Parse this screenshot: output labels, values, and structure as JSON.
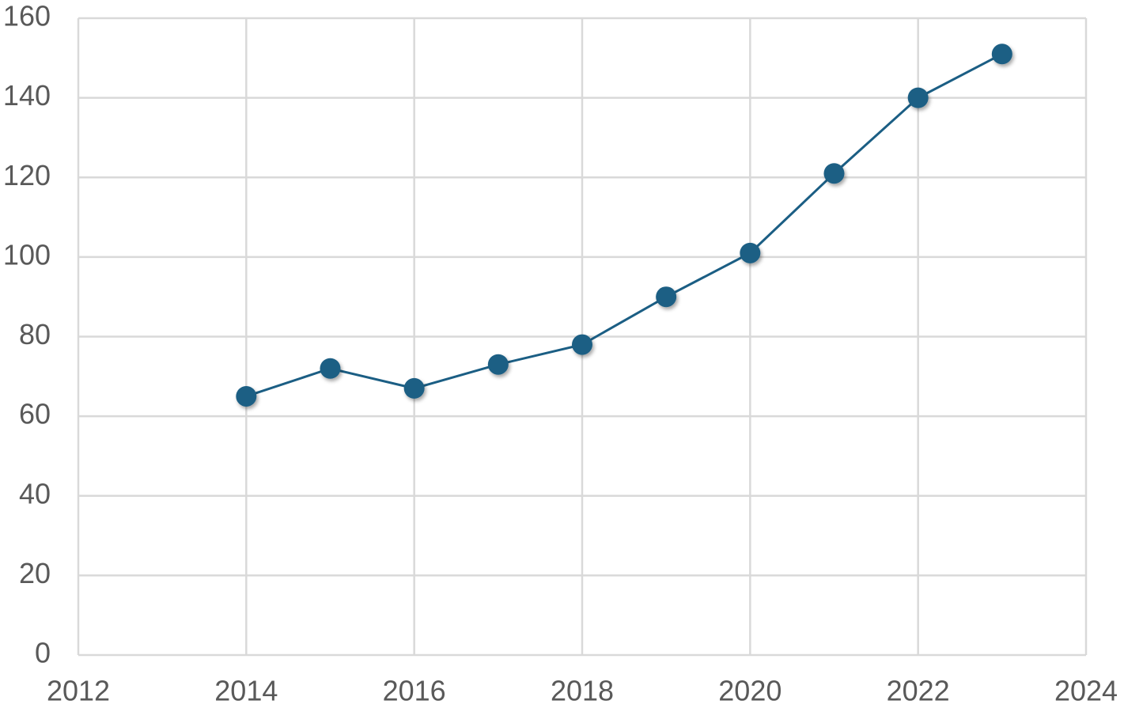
{
  "chart_data": {
    "type": "line",
    "x": [
      2014,
      2015,
      2016,
      2017,
      2018,
      2019,
      2020,
      2021,
      2022,
      2023
    ],
    "values": [
      65,
      72,
      67,
      73,
      78,
      90,
      101,
      121,
      140,
      151
    ],
    "color": "#1b5e84",
    "xlim": [
      2012,
      2024
    ],
    "xticks": [
      2012,
      2014,
      2016,
      2018,
      2020,
      2022,
      2024
    ],
    "ylim": [
      0,
      160
    ],
    "yticks": [
      0,
      20,
      40,
      60,
      80,
      100,
      120,
      140,
      160
    ],
    "grid": true
  }
}
